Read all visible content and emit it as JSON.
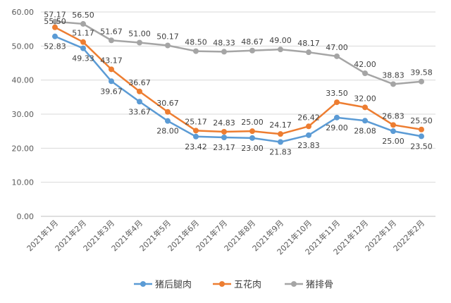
{
  "chart_data": {
    "type": "line",
    "categories": [
      "2021年1月",
      "2021年2月",
      "2021年3月",
      "2021年4月",
      "2021年5月",
      "2021年6月",
      "2021年7月",
      "2021年8月",
      "2021年9月",
      "2021年10月",
      "2021年11月",
      "2021年12月",
      "2022年1月",
      "2022年2月"
    ],
    "y_ticks": [
      "0.00",
      "10.00",
      "20.00",
      "30.00",
      "40.00",
      "50.00",
      "60.00"
    ],
    "ylim": [
      0,
      60
    ],
    "grid": "horizontal",
    "legend_position": "bottom",
    "series": [
      {
        "name": "猪后腿肉",
        "color": "#5B9BD5",
        "values": [
          52.83,
          49.33,
          39.67,
          33.67,
          28.0,
          23.42,
          23.17,
          23.0,
          21.83,
          23.83,
          29.0,
          28.08,
          25.0,
          23.5
        ],
        "labels": [
          "52.83",
          "49.33",
          "39.67",
          "33.67",
          "28.00",
          "23.42",
          "23.17",
          "23.00",
          "21.83",
          "23.83",
          "29.00",
          "28.08",
          "25.00",
          "23.50"
        ]
      },
      {
        "name": "五花肉",
        "color": "#ED7D31",
        "values": [
          55.5,
          51.17,
          43.17,
          36.67,
          30.67,
          25.17,
          24.83,
          25.0,
          24.17,
          26.42,
          33.5,
          32.0,
          26.83,
          25.5
        ],
        "labels": [
          "55.50",
          "51.17",
          "43.17",
          "36.67",
          "30.67",
          "25.17",
          "24.83",
          "25.00",
          "24.17",
          "26.42",
          "33.50",
          "32.00",
          "26.83",
          "25.50"
        ]
      },
      {
        "name": "猪排骨",
        "color": "#A5A5A5",
        "values": [
          57.17,
          56.5,
          51.67,
          51.0,
          50.17,
          48.5,
          48.33,
          48.67,
          49.0,
          48.17,
          47.0,
          42.0,
          38.83,
          39.58
        ],
        "labels": [
          "57.17",
          "56.50",
          "51.67",
          "51.00",
          "50.17",
          "48.50",
          "48.33",
          "48.67",
          "49.00",
          "48.17",
          "47.00",
          "42.00",
          "38.83",
          "39.58"
        ]
      }
    ]
  }
}
